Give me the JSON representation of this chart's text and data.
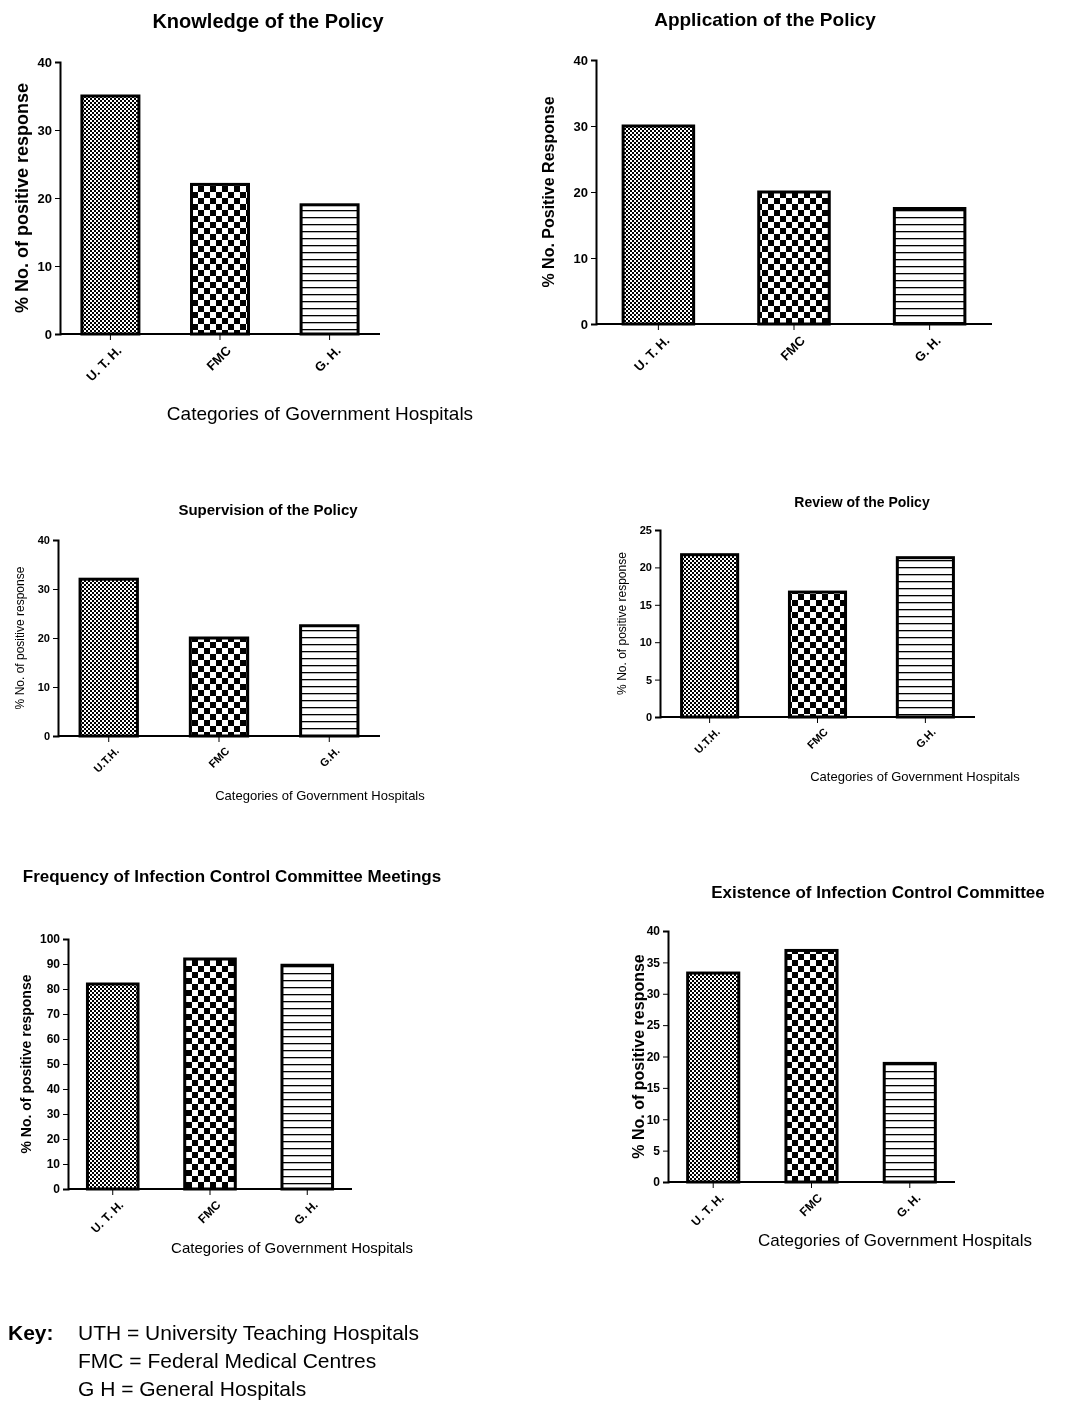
{
  "chart_data": [
    {
      "type": "bar",
      "title": "Knowledge of the Policy",
      "xlabel": "Categories of Government Hospitals",
      "ylabel": "% No. of positive response",
      "categories": [
        "U. T. H.",
        "FMC",
        "G. H."
      ],
      "values": [
        35,
        22,
        19
      ],
      "color": "#000000",
      "ylim": [
        0,
        40
      ],
      "yticks": [
        0,
        10,
        20,
        30,
        40
      ],
      "grid": false
    },
    {
      "type": "bar",
      "title": "Application of the Policy",
      "ylabel": "% No. Positive Response",
      "categories": [
        "U. T. H.",
        "FMC",
        "G. H."
      ],
      "values": [
        30,
        20,
        17.5
      ],
      "color": "#000000",
      "ylim": [
        0,
        40
      ],
      "yticks": [
        0,
        10,
        20,
        30,
        40
      ],
      "grid": false
    },
    {
      "type": "bar",
      "title": "Supervision of the Policy",
      "xlabel": "Categories of Government Hospitals",
      "ylabel": "% No. of positive response",
      "categories": [
        "U.T.H.",
        "FMC",
        "G.H."
      ],
      "values": [
        32,
        20,
        22.5
      ],
      "color": "#000000",
      "ylim": [
        0,
        40
      ],
      "yticks": [
        0,
        10,
        20,
        30,
        40
      ],
      "grid": false
    },
    {
      "type": "bar",
      "title": "Review of the Policy",
      "xlabel": "Categories of Government Hospitals",
      "ylabel": "% No. of positive response",
      "categories": [
        "U.T.H.",
        "FMC",
        "G.H."
      ],
      "values": [
        21.7,
        16.7,
        21.3
      ],
      "color": "#000000",
      "ylim": [
        0,
        25
      ],
      "yticks": [
        0,
        5,
        10,
        15,
        20,
        25
      ],
      "grid": false
    },
    {
      "type": "bar",
      "title": "Frequency of Infection Control Committee Meetings",
      "xlabel": "Categories of Government Hospitals",
      "ylabel": "% No. of positive response",
      "categories": [
        "U. T. H.",
        "FMC",
        "G. H."
      ],
      "values": [
        82,
        92,
        89.5
      ],
      "color": "#000000",
      "ylim": [
        0,
        100
      ],
      "yticks": [
        0,
        10,
        20,
        30,
        40,
        50,
        60,
        70,
        80,
        90,
        100
      ],
      "grid": false
    },
    {
      "type": "bar",
      "title": "Existence of Infection Control Committee",
      "xlabel": "Categories of Government Hospitals",
      "ylabel": "% No. of positive response",
      "categories": [
        "U. T. H.",
        "FMC",
        "G. H."
      ],
      "values": [
        33.3,
        36.9,
        18.9
      ],
      "color": "#000000",
      "ylim": [
        0,
        40
      ],
      "yticks": [
        0,
        5,
        10,
        15,
        20,
        25,
        30,
        35,
        40
      ],
      "grid": false
    },
    {
      "type": "other",
      "title": "Key:",
      "annotations": [
        "UTH = University Teaching Hospitals",
        "FMC = Federal Medical Centres",
        "G H = General Hospitals"
      ]
    }
  ]
}
